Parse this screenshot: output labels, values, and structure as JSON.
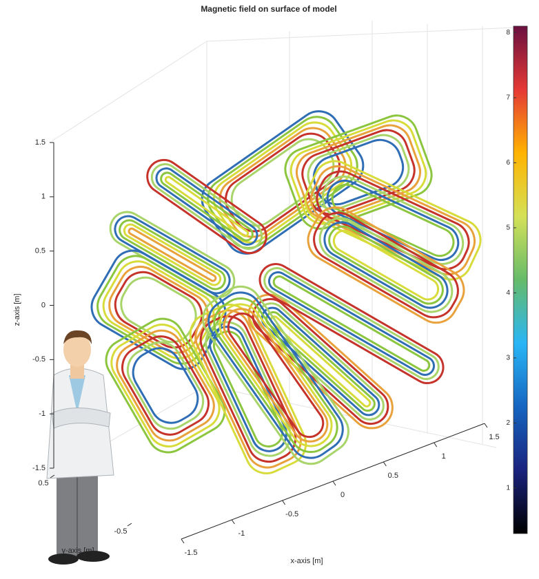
{
  "chart_data": {
    "type": "coil3d",
    "title": "Magnetic field on surface of model",
    "xlabel": "x-axis [m]",
    "ylabel": "y-axis [m]",
    "zlabel": "z-axis [m]",
    "xlim": [
      -1.5,
      1.5
    ],
    "xticks": [
      -1.5,
      -1,
      -0.5,
      0,
      0.5,
      1,
      1.5
    ],
    "ylim": [
      -1.5,
      1.5
    ],
    "yticks": [
      -0.5,
      0.5
    ],
    "zlim": [
      -1.5,
      1.5
    ],
    "zticks": [
      -1.5,
      -1,
      -0.5,
      0,
      0.5,
      1,
      1.5
    ],
    "clim": [
      0.3,
      8.1
    ],
    "cticks": [
      1,
      2,
      3,
      4,
      5,
      6,
      7,
      8
    ],
    "colormap": [
      "#000000",
      "#1a237e",
      "#1565c0",
      "#29b6f6",
      "#66bb6a",
      "#d4e157",
      "#ffb300",
      "#e53935",
      "#6a1040"
    ],
    "grid": true
  }
}
